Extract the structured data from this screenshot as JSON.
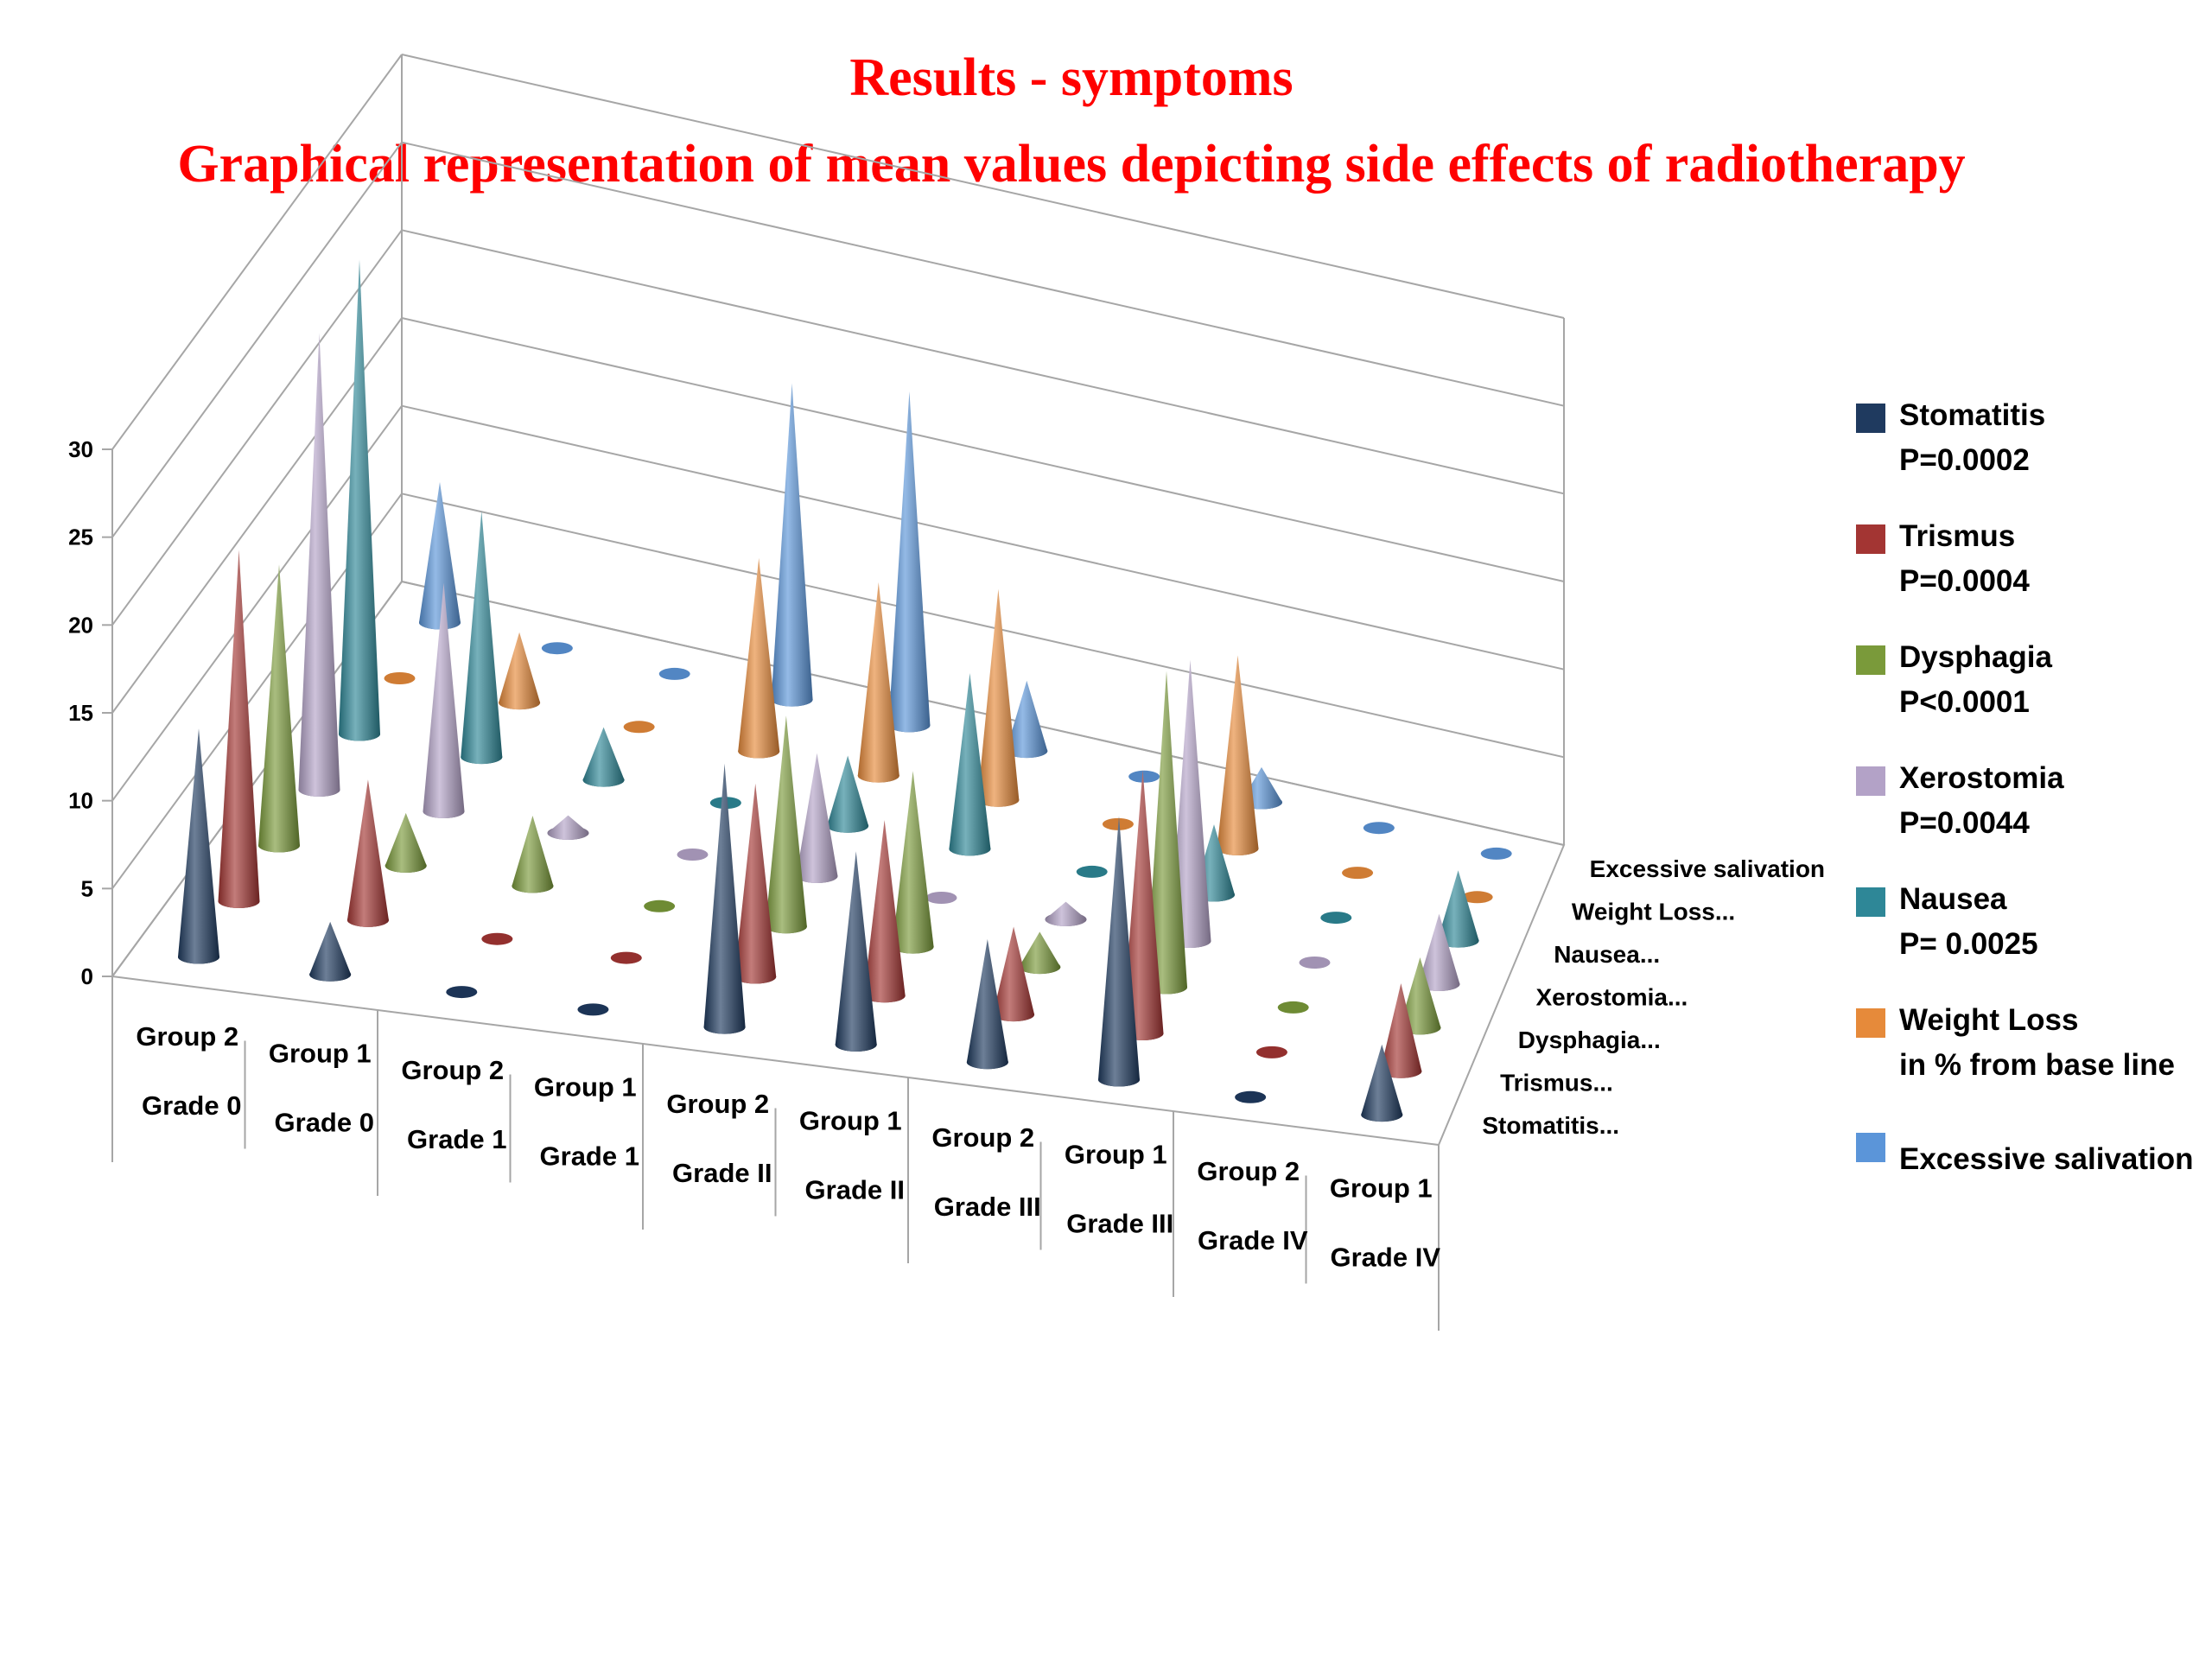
{
  "title": "Results - symptoms",
  "subtitle": "Graphical representation of mean values depicting side effects of radiotherapy",
  "legend": [
    {
      "name": "Stomatitis",
      "p": "P=0.0002",
      "color": "#1f3a5f"
    },
    {
      "name": "Trismus",
      "p": "P=0.0004",
      "color": "#a33533"
    },
    {
      "name": "Dysphagia",
      "p": "P<0.0001",
      "color": "#7a9a3a"
    },
    {
      "name": "Xerostomia",
      "p": "P=0.0044",
      "color": "#b3a2c7"
    },
    {
      "name": "Nausea",
      "p": "P= 0.0025",
      "color": "#2e8797"
    },
    {
      "name": "Weight Loss",
      "p": " in % from base line",
      "color": "#e68a3a"
    },
    {
      "name": "Excessive salivation",
      "p": "",
      "color": "#5b95d9"
    }
  ],
  "chart_data": {
    "type": "bar",
    "shape": "3d-cone",
    "categories": [
      {
        "group": "Group 2",
        "grade": "Grade 0"
      },
      {
        "group": "Group 1",
        "grade": "Grade 0"
      },
      {
        "group": "Group 2",
        "grade": "Grade 1"
      },
      {
        "group": "Group 1",
        "grade": "Grade 1"
      },
      {
        "group": "Group 2",
        "grade": "Grade II"
      },
      {
        "group": "Group 1",
        "grade": "Grade II"
      },
      {
        "group": "Group 2",
        "grade": "Grade III"
      },
      {
        "group": "Group 1",
        "grade": "Grade III"
      },
      {
        "group": "Group 2",
        "grade": "Grade IV"
      },
      {
        "group": "Group 1",
        "grade": "Grade IV"
      }
    ],
    "depth_labels": [
      "Stomatitis...",
      "Trismus...",
      "Dysphagia...",
      "Xerostomia...",
      "Nausea...",
      "Weight Loss...",
      "Excessive salivation"
    ],
    "series": [
      {
        "name": "Stomatitis",
        "values": [
          13,
          3,
          0,
          0,
          15,
          11,
          7,
          15,
          0,
          4
        ]
      },
      {
        "name": "Trismus",
        "values": [
          20,
          8,
          0,
          0,
          11,
          10,
          5,
          15,
          0,
          5
        ]
      },
      {
        "name": "Dysphagia",
        "values": [
          16,
          3,
          4,
          0,
          12,
          10,
          2,
          18,
          0,
          4
        ]
      },
      {
        "name": "Xerostomia",
        "values": [
          26,
          13,
          1,
          0,
          7,
          0,
          1,
          16,
          0,
          4
        ]
      },
      {
        "name": "Nausea",
        "values": [
          27,
          14,
          3,
          0,
          4,
          10,
          0,
          4,
          0,
          4
        ]
      },
      {
        "name": "Weight Loss",
        "values": [
          0,
          4,
          0,
          11,
          11,
          12,
          0,
          11,
          0,
          0
        ]
      },
      {
        "name": "Excessive salivation",
        "values": [
          8,
          0,
          0,
          18,
          19,
          4,
          0,
          2,
          0,
          0
        ]
      }
    ],
    "ylim": [
      0,
      30
    ],
    "yticks": [
      0,
      5,
      10,
      15,
      20,
      25,
      30
    ],
    "grid": true,
    "legend_position": "right"
  }
}
